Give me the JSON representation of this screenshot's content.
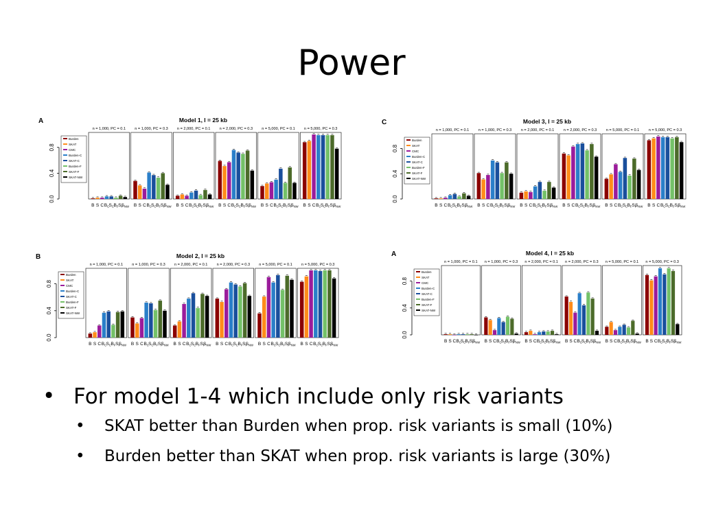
{
  "title": "Power",
  "bullets": [
    {
      "text": "For model 1-4 which include only risk variants",
      "level": 1
    },
    {
      "text": "SKAT better than Burden when prop. risk variants is small (10%)",
      "level": 2
    },
    {
      "text": "Burden better than SKAT when prop. risk variants is large (30%)",
      "level": 2
    }
  ],
  "bullet_glyph": "•",
  "chart_data": [
    {
      "type": "bar",
      "letter": "A",
      "title": "Model 1, l = 25 kb",
      "ylim": [
        0,
        1
      ],
      "yticks": [
        "0.0",
        "0.4",
        "0.8"
      ],
      "legend": [
        "Burden",
        "SKAT",
        "CMC",
        "Burden-C",
        "SKAT-C",
        "Burden-F",
        "SKAT-F",
        "SKAT-NW"
      ],
      "panels": [
        {
          "label": "n = 1,000, PC = 0.1",
          "values": [
            0.01,
            0.02,
            0.02,
            0.04,
            0.04,
            0.02,
            0.05,
            0.03
          ]
        },
        {
          "label": "n = 1,000, PC = 0.3",
          "values": [
            0.28,
            0.21,
            0.16,
            0.41,
            0.37,
            0.33,
            0.4,
            0.22
          ]
        },
        {
          "label": "n = 2,000, PC = 0.1",
          "values": [
            0.05,
            0.07,
            0.05,
            0.1,
            0.13,
            0.06,
            0.14,
            0.07
          ]
        },
        {
          "label": "n = 2,000, PC = 0.3",
          "values": [
            0.59,
            0.51,
            0.57,
            0.76,
            0.72,
            0.7,
            0.75,
            0.44
          ]
        },
        {
          "label": "n = 5,000, PC = 0.1",
          "values": [
            0.2,
            0.24,
            0.26,
            0.3,
            0.47,
            0.25,
            0.49,
            0.25
          ]
        },
        {
          "label": "n = 5,000, PC = 0.3",
          "values": [
            0.88,
            0.9,
            1.0,
            0.99,
            0.99,
            0.99,
            0.99,
            0.78
          ]
        }
      ],
      "xlabels": [
        [
          "B"
        ],
        [
          "S"
        ],
        [
          "C"
        ],
        [
          "B",
          "C"
        ],
        [
          "S",
          "C"
        ],
        [
          "B",
          "F"
        ],
        [
          "S",
          "F"
        ],
        [
          "S",
          "NW"
        ]
      ],
      "colors": [
        "#8b0000",
        "#ff8c1a",
        "#9b1c9b",
        "#2a7fc9",
        "#1a4f9c",
        "#74c168",
        "#4c6b2a",
        "#000000"
      ]
    },
    {
      "type": "bar",
      "letter": "C",
      "title": "Model 3, l = 25 kb",
      "ylim": [
        0,
        1
      ],
      "yticks": [
        "0.0",
        "0.4",
        "0.8"
      ],
      "legend": [
        "Burden",
        "SKAT",
        "CMC",
        "Burden-C",
        "SKAT-C",
        "Burden-F",
        "SKAT-F",
        "SKAT-NW"
      ],
      "panels": [
        {
          "label": "n = 1,000, PC = 0.1",
          "values": [
            0.01,
            0.01,
            0.02,
            0.06,
            0.08,
            0.04,
            0.09,
            0.05
          ]
        },
        {
          "label": "n = 1,000, PC = 0.3",
          "values": [
            0.41,
            0.31,
            0.38,
            0.61,
            0.58,
            0.41,
            0.58,
            0.4
          ]
        },
        {
          "label": "n = 2,000, PC = 0.1",
          "values": [
            0.1,
            0.12,
            0.11,
            0.2,
            0.27,
            0.13,
            0.27,
            0.18
          ]
        },
        {
          "label": "n = 2,000, PC = 0.3",
          "values": [
            0.72,
            0.69,
            0.83,
            0.87,
            0.88,
            0.77,
            0.87,
            0.67
          ]
        },
        {
          "label": "n = 5,000, PC = 0.1",
          "values": [
            0.32,
            0.39,
            0.55,
            0.43,
            0.65,
            0.37,
            0.64,
            0.46
          ]
        },
        {
          "label": "n = 5,000, PC = 0.3",
          "values": [
            0.93,
            0.96,
            0.99,
            0.98,
            0.98,
            0.96,
            0.98,
            0.9
          ]
        }
      ],
      "xlabels": [
        [
          "B"
        ],
        [
          "S"
        ],
        [
          "C"
        ],
        [
          "B",
          "C"
        ],
        [
          "S",
          "C"
        ],
        [
          "B",
          "F"
        ],
        [
          "S",
          "F"
        ],
        [
          "S",
          "NW"
        ]
      ],
      "colors": [
        "#8b0000",
        "#ff8c1a",
        "#9b1c9b",
        "#2a7fc9",
        "#1a4f9c",
        "#74c168",
        "#4c6b2a",
        "#000000"
      ]
    },
    {
      "type": "bar",
      "letter": "B",
      "title": "Model 2, l = 25 kb",
      "ylim": [
        0,
        1
      ],
      "yticks": [
        "0.0",
        "0.4",
        "0.8"
      ],
      "legend": [
        "Burden",
        "SKAT",
        "CMC",
        "Burden-C",
        "SKAT-C",
        "Burden-F",
        "SKAT-F",
        "SKAT-NW"
      ],
      "panels": [
        {
          "label": "n = 1,000, PC = 0.1",
          "values": [
            0.06,
            0.08,
            0.18,
            0.37,
            0.39,
            0.19,
            0.38,
            0.39
          ]
        },
        {
          "label": "n = 1,000, PC = 0.3",
          "values": [
            0.3,
            0.21,
            0.29,
            0.52,
            0.51,
            0.41,
            0.55,
            0.4
          ]
        },
        {
          "label": "n = 2,000, PC = 0.1",
          "values": [
            0.18,
            0.24,
            0.5,
            0.58,
            0.66,
            0.44,
            0.65,
            0.62
          ]
        },
        {
          "label": "n = 2,000, PC = 0.3",
          "values": [
            0.58,
            0.53,
            0.72,
            0.82,
            0.79,
            0.76,
            0.81,
            0.62
          ]
        },
        {
          "label": "n = 5,000, PC = 0.1",
          "values": [
            0.36,
            0.61,
            0.9,
            0.82,
            0.93,
            0.71,
            0.92,
            0.86
          ]
        },
        {
          "label": "n = 5,000, PC = 0.3",
          "values": [
            0.83,
            0.91,
            1.0,
            1.0,
            0.99,
            1.0,
            1.0,
            0.88
          ]
        }
      ],
      "xlabels": [
        [
          "B"
        ],
        [
          "S"
        ],
        [
          "C"
        ],
        [
          "B",
          "C"
        ],
        [
          "S",
          "C"
        ],
        [
          "B",
          "F"
        ],
        [
          "S",
          "F"
        ],
        [
          "S",
          "NW"
        ]
      ],
      "colors": [
        "#8b0000",
        "#ff8c1a",
        "#9b1c9b",
        "#2a7fc9",
        "#1a4f9c",
        "#74c168",
        "#4c6b2a",
        "#000000"
      ]
    },
    {
      "type": "bar",
      "letter": "A",
      "title": "Model 4, l = 25 kb",
      "ylim": [
        0,
        1
      ],
      "yticks": [
        "0.0",
        "0.4",
        "0.8"
      ],
      "legend": [
        "Burden",
        "SKAT",
        "CMC",
        "Burden-C",
        "SKAT-C",
        "Burden-F",
        "SKAT-F",
        "SKAT-NW"
      ],
      "panels": [
        {
          "label": "n = 1,000, PC = 0.1",
          "values": [
            0.01,
            0.01,
            0.0,
            0.01,
            0.01,
            0.01,
            0.01,
            0.0
          ]
        },
        {
          "label": "n = 1,000, PC = 0.3",
          "values": [
            0.26,
            0.22,
            0.07,
            0.25,
            0.19,
            0.27,
            0.24,
            0.02
          ]
        },
        {
          "label": "n = 2,000, PC = 0.1",
          "values": [
            0.04,
            0.06,
            0.01,
            0.04,
            0.05,
            0.05,
            0.06,
            0.01
          ]
        },
        {
          "label": "n = 2,000, PC = 0.3",
          "values": [
            0.57,
            0.49,
            0.33,
            0.62,
            0.44,
            0.63,
            0.54,
            0.06
          ]
        },
        {
          "label": "n = 5,000, PC = 0.1",
          "values": [
            0.12,
            0.19,
            0.07,
            0.12,
            0.15,
            0.11,
            0.21,
            0.02
          ]
        },
        {
          "label": "n = 5,000, PC = 0.3",
          "values": [
            0.89,
            0.81,
            0.87,
            0.99,
            0.9,
            0.99,
            0.95,
            0.16
          ]
        }
      ],
      "xlabels": [
        [
          "B"
        ],
        [
          "S"
        ],
        [
          "C"
        ],
        [
          "B",
          "C"
        ],
        [
          "S",
          "C"
        ],
        [
          "B",
          "F"
        ],
        [
          "S",
          "F"
        ],
        [
          "S",
          "NW"
        ]
      ],
      "colors": [
        "#8b0000",
        "#ff8c1a",
        "#9b1c9b",
        "#2a7fc9",
        "#1a4f9c",
        "#74c168",
        "#4c6b2a",
        "#000000"
      ]
    }
  ]
}
